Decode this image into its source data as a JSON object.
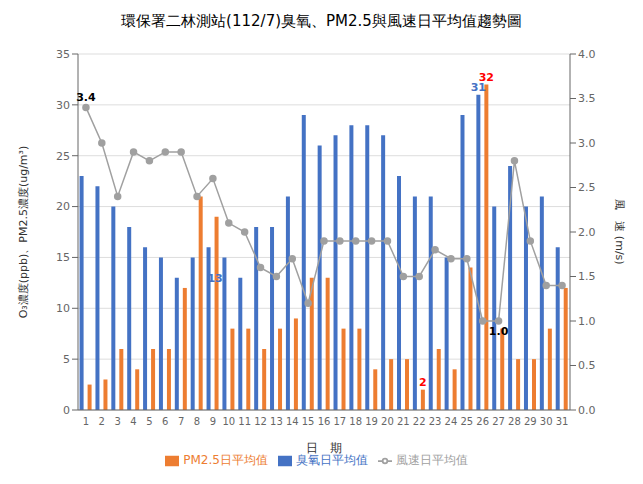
{
  "chart_data": {
    "type": "bar",
    "title": "環保署二林測站(112/7)臭氧、PM2.5與風速日平均值趨勢圖",
    "xlabel": "日　期",
    "ylabel": "O₃濃度(ppb)、PM2.5濃度(ug/m³)",
    "y2label": "風　速 (m/s)",
    "categories": [
      1,
      2,
      3,
      4,
      5,
      6,
      7,
      8,
      9,
      10,
      11,
      12,
      13,
      14,
      15,
      16,
      17,
      18,
      19,
      20,
      21,
      22,
      23,
      24,
      25,
      26,
      27,
      28,
      29,
      30,
      31
    ],
    "series": [
      {
        "name": "臭氧日平均值",
        "color": "#4472C4",
        "values": [
          23,
          22,
          20,
          18,
          16,
          15,
          13,
          15,
          16,
          15,
          13,
          18,
          18,
          21,
          29,
          26,
          27,
          28,
          28,
          27,
          23,
          21,
          21,
          15,
          29,
          31,
          20,
          24,
          20,
          21,
          16
        ]
      },
      {
        "name": "PM2.5日平均值",
        "color": "#ED7D31",
        "values": [
          2.5,
          3,
          6,
          4,
          6,
          6,
          12,
          21,
          19,
          8,
          8,
          6,
          8,
          9,
          13,
          13,
          8,
          8,
          4,
          5,
          5,
          2,
          6,
          4,
          14,
          32,
          8,
          5,
          5,
          8,
          12
        ]
      },
      {
        "name": "風速日平均值",
        "type": "line",
        "axis": "y2",
        "marker": "circle",
        "color": "#A0A0A0",
        "values": [
          3.4,
          3.0,
          2.4,
          2.9,
          2.8,
          2.9,
          2.9,
          2.4,
          2.6,
          2.1,
          2.0,
          1.6,
          1.5,
          1.7,
          1.2,
          1.9,
          1.9,
          1.9,
          1.9,
          1.9,
          1.5,
          1.5,
          1.8,
          1.7,
          1.7,
          1.0,
          1.0,
          2.8,
          1.9,
          1.4,
          1.4
        ]
      }
    ],
    "ylim": [
      0,
      35
    ],
    "yticks": [
      0,
      5,
      10,
      15,
      20,
      25,
      30,
      35
    ],
    "y2lim": [
      0,
      4.0
    ],
    "y2ticks": [
      {
        "value": 0,
        "label": "0.0"
      },
      0.5,
      {
        "value": 1,
        "label": "1.0"
      },
      1.5,
      {
        "value": 2,
        "label": "2.0"
      },
      2.5,
      {
        "value": 3,
        "label": "3.0"
      },
      3.5,
      {
        "value": 4,
        "label": "4.0"
      }
    ],
    "grid": true,
    "legend": "bottom",
    "annotations": [
      {
        "text": "3.4",
        "x": 1,
        "y": 3.4,
        "axis": "y2",
        "color": "#000000"
      },
      {
        "text": "13",
        "x": 10,
        "y": 13,
        "color": "#4472C4"
      },
      {
        "text": "31",
        "x": 26,
        "y": 31,
        "series": "臭氧日平均值",
        "color": "#4472C4"
      },
      {
        "text": "32",
        "x": 26,
        "y": 32,
        "series": "PM2.5日平均值",
        "color": "#FF0000"
      },
      {
        "text": "2",
        "x": 22,
        "y": 2,
        "series": "PM2.5日平均值",
        "color": "#FF0000"
      },
      {
        "text": "1.0",
        "x": 27,
        "y": 1.0,
        "axis": "y2",
        "color": "#000000"
      }
    ]
  }
}
